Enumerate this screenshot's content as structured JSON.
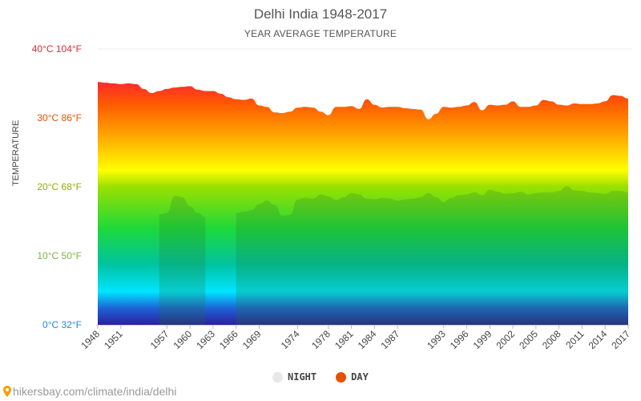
{
  "chart_data": {
    "type": "area",
    "title": "Delhi India 1948-2017",
    "subtitle": "YEAR AVERAGE TEMPERATURE",
    "ylabel": "TEMPERATURE",
    "ylim_c": [
      0,
      40
    ],
    "y_ticks": [
      {
        "label": "0°C 32°F",
        "value": 0,
        "color": "#1e88e5"
      },
      {
        "label": "10°C 50°F",
        "value": 10,
        "color": "#7cb342"
      },
      {
        "label": "20°C 68°F",
        "value": 20,
        "color": "#8fb000"
      },
      {
        "label": "30°C 86°F",
        "value": 30,
        "color": "#e65100"
      },
      {
        "label": "40°C 104°F",
        "value": 40,
        "color": "#d32f2f"
      }
    ],
    "x_tick_labels": [
      "1948",
      "1951",
      "1957",
      "1960",
      "1963",
      "1966",
      "1969",
      "1974",
      "1978",
      "1981",
      "1984",
      "1987",
      "1993",
      "1996",
      "1999",
      "2002",
      "2005",
      "2008",
      "2011",
      "2014",
      "2017"
    ],
    "series": [
      {
        "name": "NIGHT",
        "legend_color": "#e8e8e8",
        "values": [
          null,
          null,
          null,
          null,
          null,
          null,
          null,
          null,
          16,
          16.2,
          18.7,
          18.5,
          17.2,
          16.2,
          15.6,
          null,
          null,
          null,
          16.2,
          16.4,
          16.6,
          17.5,
          18,
          17.4,
          15.8,
          15.9,
          18.2,
          18.4,
          18.3,
          18.9,
          18.6,
          18.1,
          18.5,
          19.1,
          18.9,
          18.3,
          18.2,
          18.4,
          18.3,
          18,
          18.2,
          18.3,
          18.5,
          19.1,
          18.5,
          17.8,
          18.4,
          18.8,
          18.9,
          19.2,
          18.8,
          19.6,
          19.3,
          19,
          19.1,
          19.3,
          18.9,
          19.1,
          19.2,
          19.2,
          19.4,
          20.1,
          19.5,
          19.4,
          19.2,
          19.1,
          19,
          19.4,
          19.4,
          19.2
        ]
      },
      {
        "name": "DAY",
        "legend_color": "#e65100",
        "values": [
          35.2,
          35.1,
          35,
          34.9,
          35,
          34.9,
          34.2,
          33.6,
          33.9,
          34.2,
          34.4,
          34.5,
          34.6,
          34.1,
          33.9,
          33.9,
          33.5,
          33,
          32.7,
          32.6,
          32.8,
          31.8,
          31.6,
          30.8,
          30.7,
          30.9,
          31.5,
          31.6,
          31.5,
          30.9,
          30.4,
          31.6,
          31.6,
          31.7,
          31.3,
          32.7,
          31.9,
          31.5,
          31.6,
          31.6,
          31.4,
          31.3,
          31.2,
          29.8,
          30.6,
          31.6,
          31.5,
          31.6,
          31.8,
          32.3,
          31.1,
          31.9,
          31.8,
          31.9,
          32.4,
          31.6,
          31.6,
          31.8,
          32.6,
          32.4,
          31.9,
          31.8,
          32.1,
          32,
          32,
          32.1,
          32.4,
          33.3,
          33.2,
          32.8
        ]
      }
    ],
    "year_start": 1948,
    "year_end": 2017,
    "legend_position": "bottom-center",
    "grid": true
  },
  "source": {
    "pin_icon": "location-pin-icon",
    "text": "hikersbay.com/climate/india/delhi"
  }
}
